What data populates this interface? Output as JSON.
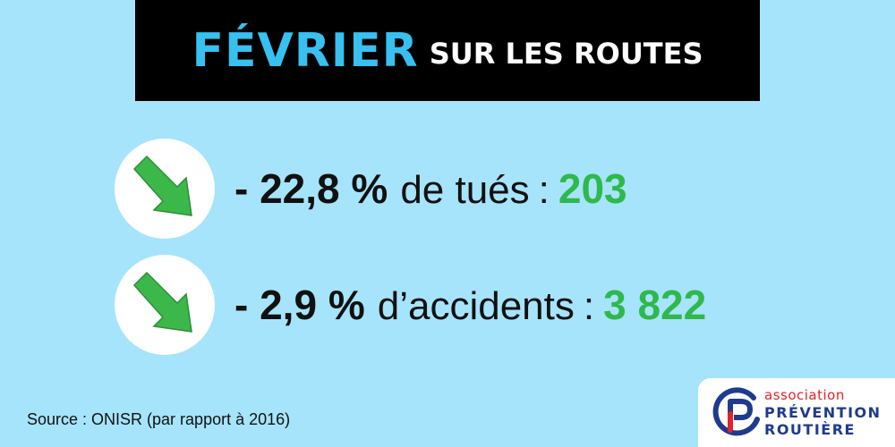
{
  "header": {
    "title_big": "FÉVRIER",
    "title_small": "SUR LES ROUTES"
  },
  "stats": [
    {
      "change": "- 22,8 %",
      "label": "de tués",
      "separator": ":",
      "count": "203",
      "icon": "arrow-down-right-icon"
    },
    {
      "change": "- 2,9 %",
      "label": "d’accidents",
      "separator": ":",
      "count": "3 822",
      "icon": "arrow-down-right-icon"
    }
  ],
  "source": "Source : ONISR (par rapport à 2016)",
  "logo": {
    "line1": "association",
    "line2": "PRÉVENTION",
    "line3": "ROUTIÈRE"
  },
  "colors": {
    "background": "#a6e4fb",
    "banner": "#000000",
    "title_big": "#38c0f0",
    "count": "#2fb84c",
    "arrow": "#3cb84a",
    "logo_red": "#e2232a",
    "logo_blue": "#1f3b8c"
  }
}
